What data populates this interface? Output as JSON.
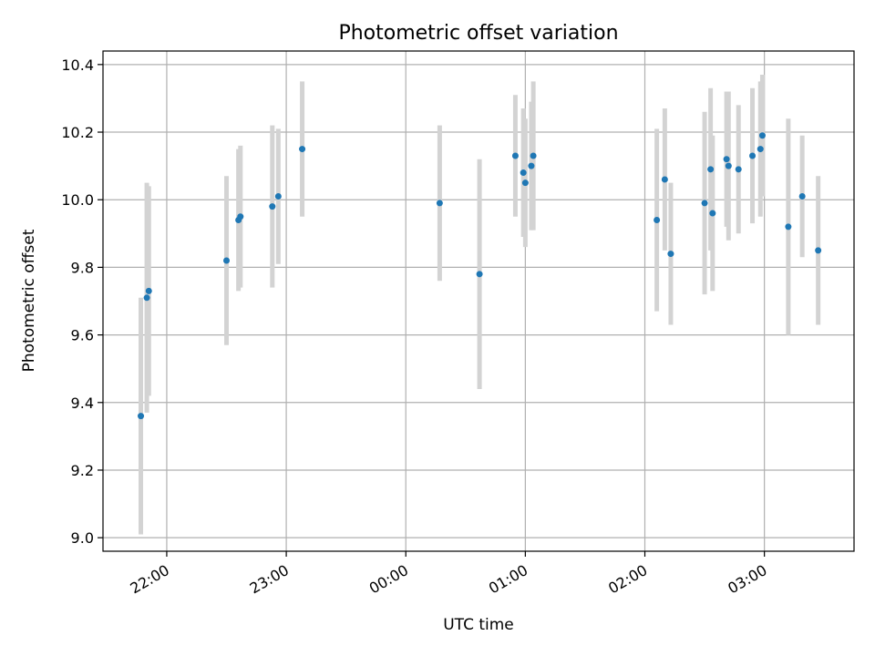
{
  "chart_data": {
    "type": "scatter",
    "title": "Photometric offset variation",
    "xlabel": "UTC time",
    "ylabel": "Photometric offset",
    "x_axis_type": "time",
    "xlim": [
      "21:28",
      "03:45"
    ],
    "ylim": [
      8.96,
      10.44
    ],
    "x_ticks": [
      "22:00",
      "23:00",
      "00:00",
      "01:00",
      "02:00",
      "03:00"
    ],
    "y_ticks": [
      9.0,
      9.2,
      9.4,
      9.6,
      9.8,
      10.0,
      10.2,
      10.4
    ],
    "y_tick_labels": [
      "9.0",
      "9.2",
      "9.4",
      "9.6",
      "9.8",
      "10.0",
      "10.2",
      "10.4"
    ],
    "grid": true,
    "point_color": "#1f77b4",
    "errorbar_color": "#d3d3d3",
    "points": [
      {
        "x": "21:47",
        "y": 9.36,
        "err": 0.35
      },
      {
        "x": "21:50",
        "y": 9.71,
        "err": 0.34
      },
      {
        "x": "21:51",
        "y": 9.73,
        "err": 0.31
      },
      {
        "x": "22:30",
        "y": 9.82,
        "err": 0.25
      },
      {
        "x": "22:36",
        "y": 9.94,
        "err": 0.21
      },
      {
        "x": "22:37",
        "y": 9.95,
        "err": 0.21
      },
      {
        "x": "22:53",
        "y": 9.98,
        "err": 0.24
      },
      {
        "x": "22:56",
        "y": 10.01,
        "err": 0.2
      },
      {
        "x": "23:08",
        "y": 10.15,
        "err": 0.2
      },
      {
        "x": "00:17",
        "y": 9.99,
        "err": 0.23
      },
      {
        "x": "00:37",
        "y": 9.78,
        "err": 0.34
      },
      {
        "x": "00:55",
        "y": 10.13,
        "err": 0.18
      },
      {
        "x": "00:59",
        "y": 10.08,
        "err": 0.19
      },
      {
        "x": "01:00",
        "y": 10.05,
        "err": 0.19
      },
      {
        "x": "01:03",
        "y": 10.1,
        "err": 0.19
      },
      {
        "x": "01:04",
        "y": 10.13,
        "err": 0.22
      },
      {
        "x": "02:06",
        "y": 9.94,
        "err": 0.27
      },
      {
        "x": "02:10",
        "y": 10.06,
        "err": 0.21
      },
      {
        "x": "02:13",
        "y": 9.84,
        "err": 0.21
      },
      {
        "x": "02:30",
        "y": 9.99,
        "err": 0.27
      },
      {
        "x": "02:33",
        "y": 10.09,
        "err": 0.24
      },
      {
        "x": "02:34",
        "y": 9.96,
        "err": 0.23
      },
      {
        "x": "02:41",
        "y": 10.12,
        "err": 0.2
      },
      {
        "x": "02:42",
        "y": 10.1,
        "err": 0.22
      },
      {
        "x": "02:47",
        "y": 10.09,
        "err": 0.19
      },
      {
        "x": "02:54",
        "y": 10.13,
        "err": 0.2
      },
      {
        "x": "02:58",
        "y": 10.15,
        "err": 0.2
      },
      {
        "x": "02:59",
        "y": 10.19,
        "err": 0.18
      },
      {
        "x": "03:12",
        "y": 9.92,
        "err": 0.32
      },
      {
        "x": "03:19",
        "y": 10.01,
        "err": 0.18
      },
      {
        "x": "03:27",
        "y": 9.85,
        "err": 0.22
      }
    ]
  }
}
